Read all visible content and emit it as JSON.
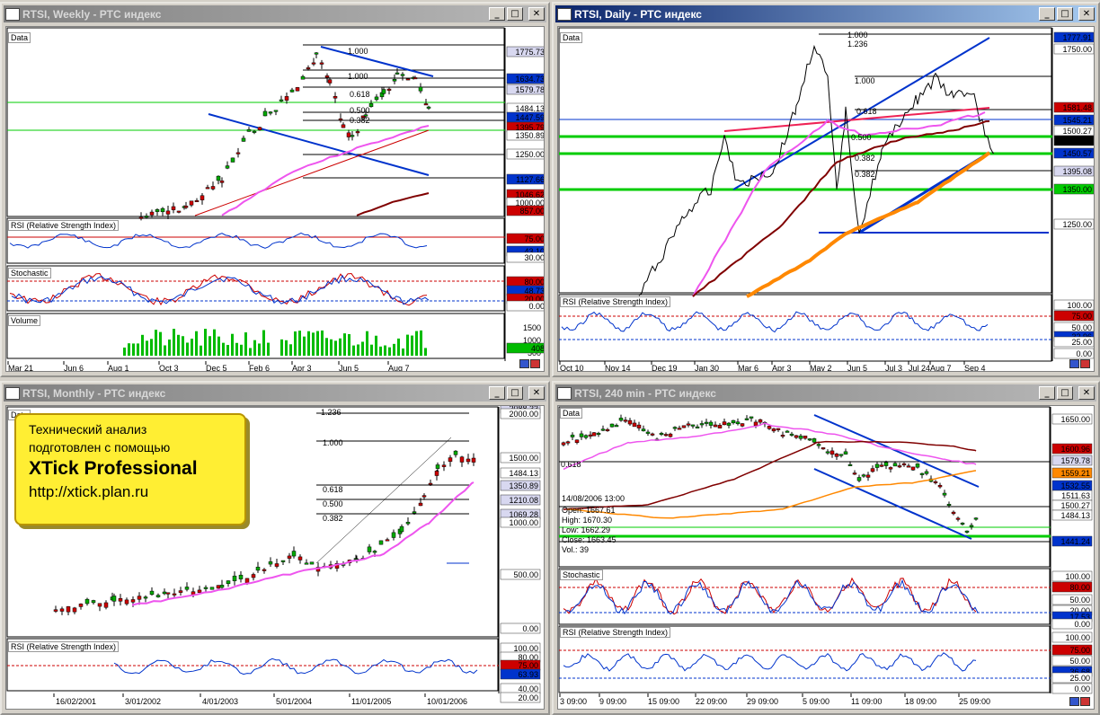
{
  "windows": {
    "weekly": {
      "title": "RTSI, Weekly - РТС индекс",
      "panels": {
        "data": "Data",
        "rsi": "RSI (Relative Strength Index)",
        "stoch": "Stochastic",
        "volume": "Volume"
      },
      "price_ticks": [
        "1775.73",
        "1634.73",
        "1579.78",
        "1484.13",
        "1447.59",
        "1395.79",
        "1350.89",
        "1250.00",
        "1127.66",
        "1046.62",
        "1000.00",
        "857.00"
      ],
      "fib": [
        "1.000",
        "1.000",
        "0.618",
        "0.500",
        "0.382"
      ],
      "rsi_ticks": [
        "75.00",
        "43.10",
        "30.00"
      ],
      "stoch_ticks": [
        "80.00",
        "48.73",
        "20.00",
        "0.00"
      ],
      "volume_ticks": [
        "1500",
        "1000",
        "500",
        "408"
      ],
      "dates": [
        "Mar 21",
        "Jun 6",
        "Aug 1",
        "Oct 3",
        "Dec 5",
        "Feb 6",
        "Apr 3",
        "Jun 5",
        "Aug 7"
      ]
    },
    "daily": {
      "title": "RTSI, Daily - РТС индекс",
      "panels": {
        "data": "Data",
        "rsi": "RSI (Relative Strength Index)"
      },
      "price_ticks": [
        "1777.91",
        "1750.00",
        "1581.48",
        "1545.21",
        "1500.27",
        "1484.13",
        "1450.57",
        "1395.08",
        "1350.00",
        "1250.00"
      ],
      "fib": [
        "1.000",
        "1.236",
        "1.000",
        "0.618",
        "0.500",
        "0.382",
        "0.382"
      ],
      "rsi_ticks": [
        "100.00",
        "75.00",
        "50.00",
        "32.96",
        "25.00",
        "0.00"
      ],
      "dates": [
        "Oct 10",
        "Nov 14",
        "Dec 19",
        "Jan 30",
        "Mar 6",
        "Apr 3",
        "May 2",
        "Jun 5",
        "Jul 3",
        "Jul 24",
        "Aug 7",
        "Sep 4"
      ]
    },
    "monthly": {
      "title": "RTSI, Monthly - РТС индекс",
      "panels": {
        "data": "Data",
        "rsi": "RSI (Relative Strength Index)"
      },
      "price_ticks": [
        "2088.33",
        "2000.00",
        "1500.00",
        "1484.13",
        "1350.89",
        "1210.08",
        "1069.28",
        "1000.00",
        "500.00",
        "0.00"
      ],
      "fib": [
        "1.236",
        "1.000",
        "0.618",
        "0.500",
        "0.382"
      ],
      "rsi_ticks": [
        "100.00",
        "80.00",
        "75.00",
        "63.93",
        "40.00",
        "20.00"
      ],
      "dates": [
        "16/02/2001",
        "3/01/2002",
        "4/01/2003",
        "5/01/2004",
        "11/01/2005",
        "10/01/2006"
      ]
    },
    "min240": {
      "title": "RTSI, 240 min - РТС индекс",
      "panels": {
        "data": "Data",
        "stoch": "Stochastic",
        "rsi": "RSI (Relative Strength Index)"
      },
      "price_ticks": [
        "1650.00",
        "1600.96",
        "1579.78",
        "1559.21",
        "1532.55",
        "1511.63",
        "1500.27",
        "1484.13",
        "1441.24"
      ],
      "fib": [
        "0.618"
      ],
      "tooltip": {
        "date": "14/08/2006 13:00",
        "open": "Open: 1667.61",
        "high": "High: 1670.30",
        "low": "Low: 1662.29",
        "close": "Close: 1663.45",
        "vol": "Vol.: 39"
      },
      "stoch_ticks": [
        "100.00",
        "80.00",
        "50.00",
        "20.00",
        "17.53",
        "0.00"
      ],
      "rsi_ticks": [
        "100.00",
        "75.00",
        "50.00",
        "36.68",
        "25.00",
        "0.00"
      ],
      "dates": [
        "3 09:00",
        "9 09:00",
        "15 09:00",
        "22 09:00",
        "29 09:00",
        "5 09:00",
        "11 09:00",
        "18 09:00",
        "25 09:00"
      ]
    }
  },
  "promo": {
    "line1": "Технический анализ",
    "line2": "подготовлен с помощью",
    "line3": "XTick Professional",
    "line4": "http://xtick.plan.ru"
  },
  "buttons": {
    "minimize": "_",
    "maximize": "□",
    "close": "✕"
  },
  "colors": {
    "active_title": "#0a246a",
    "inactive_title": "#808080",
    "promo_bg": "#ffee33",
    "candle_up": "#00aa00",
    "candle_down": "#cc0000"
  }
}
